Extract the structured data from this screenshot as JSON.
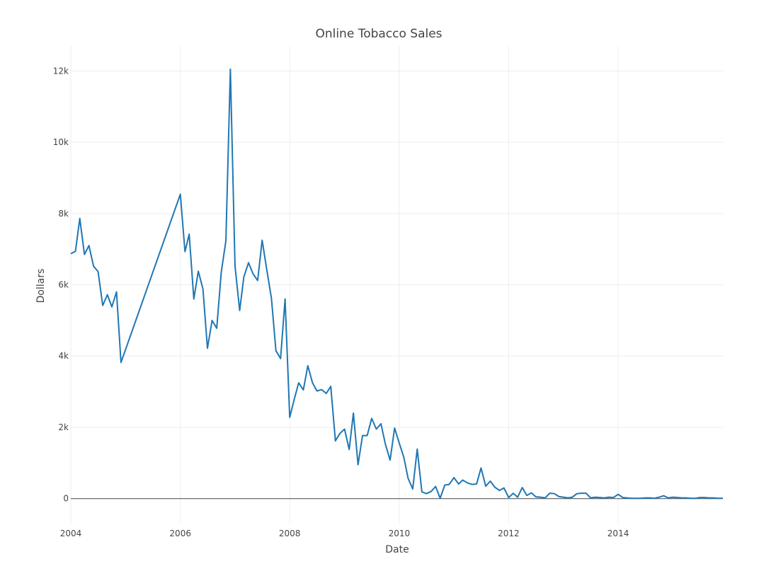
{
  "chart_data": {
    "type": "line",
    "title": "Online Tobacco Sales",
    "xlabel": "Date",
    "ylabel": "Dollars",
    "xlim": [
      "2004-01-01",
      "2015-12-01"
    ],
    "ylim": [
      -700,
      12700
    ],
    "x_ticks": [
      {
        "date": "2004-01-01",
        "label": "2004"
      },
      {
        "date": "2006-01-01",
        "label": "2006"
      },
      {
        "date": "2008-01-01",
        "label": "2008"
      },
      {
        "date": "2010-01-01",
        "label": "2010"
      },
      {
        "date": "2012-01-01",
        "label": "2012"
      },
      {
        "date": "2014-01-01",
        "label": "2014"
      }
    ],
    "y_ticks": [
      {
        "value": 0,
        "label": "0"
      },
      {
        "value": 2000,
        "label": "2k"
      },
      {
        "value": 4000,
        "label": "4k"
      },
      {
        "value": 6000,
        "label": "6k"
      },
      {
        "value": 8000,
        "label": "8k"
      },
      {
        "value": 10000,
        "label": "10k"
      },
      {
        "value": 12000,
        "label": "12k"
      }
    ],
    "grid": true,
    "series": [
      {
        "color": "#1f77b4",
        "points": [
          [
            "2004-01-01",
            6870
          ],
          [
            "2004-02-01",
            6940
          ],
          [
            "2004-03-01",
            7860
          ],
          [
            "2004-04-01",
            6850
          ],
          [
            "2004-05-01",
            7100
          ],
          [
            "2004-06-01",
            6520
          ],
          [
            "2004-07-01",
            6370
          ],
          [
            "2004-08-01",
            5420
          ],
          [
            "2004-09-01",
            5720
          ],
          [
            "2004-10-01",
            5380
          ],
          [
            "2004-11-01",
            5800
          ],
          [
            "2004-12-01",
            3820
          ],
          [
            "2006-01-01",
            8540
          ],
          [
            "2006-02-01",
            6930
          ],
          [
            "2006-03-01",
            7420
          ],
          [
            "2006-04-01",
            5600
          ],
          [
            "2006-05-01",
            6380
          ],
          [
            "2006-06-01",
            5880
          ],
          [
            "2006-07-01",
            4220
          ],
          [
            "2006-08-01",
            5000
          ],
          [
            "2006-09-01",
            4780
          ],
          [
            "2006-10-01",
            6350
          ],
          [
            "2006-11-01",
            7230
          ],
          [
            "2006-12-01",
            12050
          ],
          [
            "2007-01-01",
            6520
          ],
          [
            "2007-02-01",
            5280
          ],
          [
            "2007-03-01",
            6220
          ],
          [
            "2007-04-01",
            6620
          ],
          [
            "2007-05-01",
            6310
          ],
          [
            "2007-06-01",
            6120
          ],
          [
            "2007-07-01",
            7250
          ],
          [
            "2007-08-01",
            6420
          ],
          [
            "2007-09-01",
            5620
          ],
          [
            "2007-10-01",
            4150
          ],
          [
            "2007-11-01",
            3930
          ],
          [
            "2007-12-01",
            5600
          ],
          [
            "2008-01-01",
            2280
          ],
          [
            "2008-02-01",
            2800
          ],
          [
            "2008-03-01",
            3250
          ],
          [
            "2008-04-01",
            3050
          ],
          [
            "2008-05-01",
            3730
          ],
          [
            "2008-06-01",
            3250
          ],
          [
            "2008-07-01",
            3020
          ],
          [
            "2008-08-01",
            3060
          ],
          [
            "2008-09-01",
            2950
          ],
          [
            "2008-10-01",
            3150
          ],
          [
            "2008-11-01",
            1620
          ],
          [
            "2008-12-01",
            1830
          ],
          [
            "2009-01-01",
            1950
          ],
          [
            "2009-02-01",
            1380
          ],
          [
            "2009-03-01",
            2400
          ],
          [
            "2009-04-01",
            950
          ],
          [
            "2009-05-01",
            1770
          ],
          [
            "2009-06-01",
            1770
          ],
          [
            "2009-07-01",
            2250
          ],
          [
            "2009-08-01",
            1950
          ],
          [
            "2009-09-01",
            2100
          ],
          [
            "2009-10-01",
            1520
          ],
          [
            "2009-11-01",
            1080
          ],
          [
            "2009-12-01",
            1980
          ],
          [
            "2010-01-01",
            1560
          ],
          [
            "2010-02-01",
            1150
          ],
          [
            "2010-03-01",
            570
          ],
          [
            "2010-04-01",
            270
          ],
          [
            "2010-05-01",
            1390
          ],
          [
            "2010-06-01",
            190
          ],
          [
            "2010-07-01",
            140
          ],
          [
            "2010-08-01",
            200
          ],
          [
            "2010-09-01",
            340
          ],
          [
            "2010-10-01",
            10
          ],
          [
            "2010-11-01",
            380
          ],
          [
            "2010-12-01",
            400
          ],
          [
            "2011-01-01",
            590
          ],
          [
            "2011-02-01",
            410
          ],
          [
            "2011-03-01",
            520
          ],
          [
            "2011-04-01",
            440
          ],
          [
            "2011-05-01",
            400
          ],
          [
            "2011-06-01",
            410
          ],
          [
            "2011-07-01",
            860
          ],
          [
            "2011-08-01",
            350
          ],
          [
            "2011-09-01",
            490
          ],
          [
            "2011-10-01",
            320
          ],
          [
            "2011-11-01",
            230
          ],
          [
            "2011-12-01",
            300
          ],
          [
            "2012-01-01",
            30
          ],
          [
            "2012-02-01",
            150
          ],
          [
            "2012-03-01",
            40
          ],
          [
            "2012-04-01",
            310
          ],
          [
            "2012-05-01",
            90
          ],
          [
            "2012-06-01",
            160
          ],
          [
            "2012-07-01",
            50
          ],
          [
            "2012-08-01",
            40
          ],
          [
            "2012-09-01",
            20
          ],
          [
            "2012-10-01",
            150
          ],
          [
            "2012-11-01",
            140
          ],
          [
            "2012-12-01",
            60
          ],
          [
            "2013-01-01",
            40
          ],
          [
            "2013-02-01",
            20
          ],
          [
            "2013-03-01",
            40
          ],
          [
            "2013-04-01",
            140
          ],
          [
            "2013-05-01",
            150
          ],
          [
            "2013-06-01",
            150
          ],
          [
            "2013-07-01",
            20
          ],
          [
            "2013-08-01",
            40
          ],
          [
            "2013-09-01",
            30
          ],
          [
            "2013-10-01",
            20
          ],
          [
            "2013-11-01",
            40
          ],
          [
            "2013-12-01",
            30
          ],
          [
            "2014-01-01",
            120
          ],
          [
            "2014-02-01",
            30
          ],
          [
            "2014-03-01",
            20
          ],
          [
            "2014-04-01",
            10
          ],
          [
            "2014-05-01",
            10
          ],
          [
            "2014-06-01",
            10
          ],
          [
            "2014-07-01",
            20
          ],
          [
            "2014-08-01",
            20
          ],
          [
            "2014-09-01",
            10
          ],
          [
            "2014-10-01",
            40
          ],
          [
            "2014-11-01",
            80
          ],
          [
            "2014-12-01",
            20
          ],
          [
            "2015-01-01",
            40
          ],
          [
            "2015-02-01",
            30
          ],
          [
            "2015-03-01",
            20
          ],
          [
            "2015-04-01",
            20
          ],
          [
            "2015-05-01",
            10
          ],
          [
            "2015-06-01",
            10
          ],
          [
            "2015-07-01",
            30
          ],
          [
            "2015-08-01",
            30
          ],
          [
            "2015-09-01",
            20
          ],
          [
            "2015-10-01",
            20
          ],
          [
            "2015-11-01",
            10
          ],
          [
            "2015-12-01",
            10
          ]
        ]
      }
    ]
  }
}
